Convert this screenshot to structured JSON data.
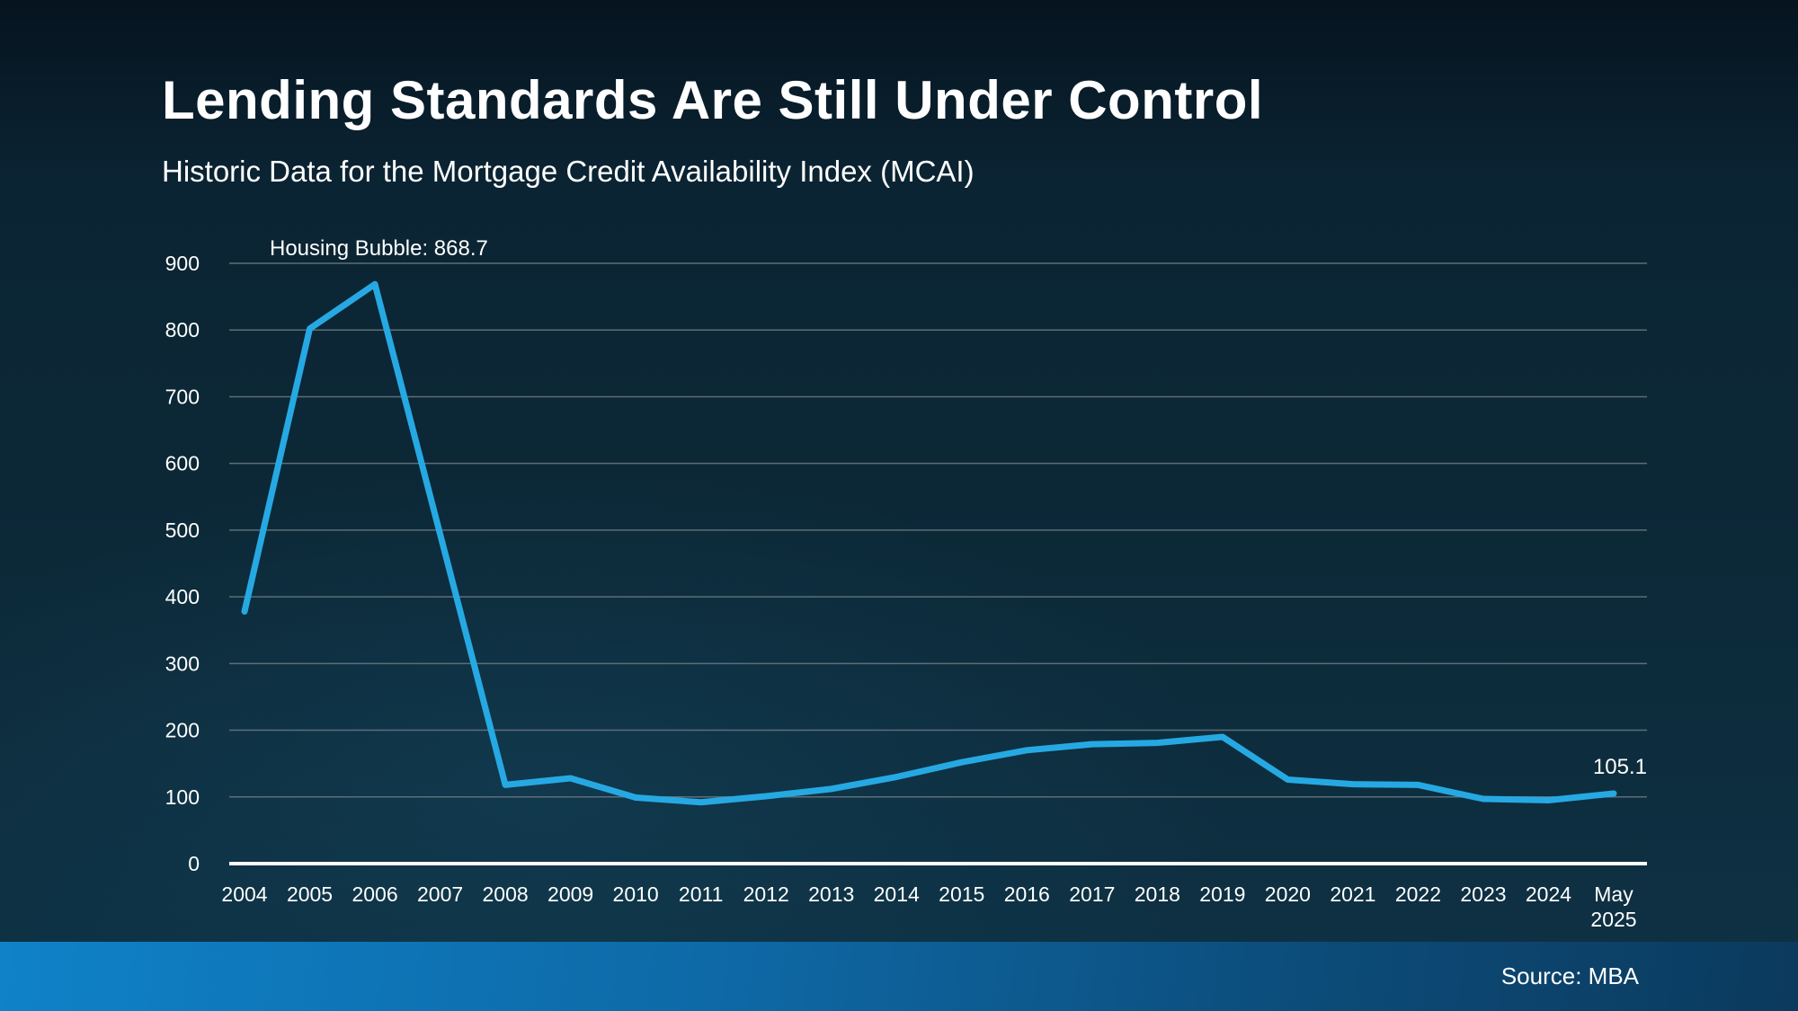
{
  "header": {
    "title": "Lending Standards Are Still Under Control",
    "subtitle": "Historic Data for the Mortgage Credit Availability Index (MCAI)"
  },
  "footer": {
    "source": "Source: MBA"
  },
  "colors": {
    "line": "#26A9E2",
    "grid": "#5D6E78",
    "axis": "#FFFFFF",
    "text": "#FFFFFF",
    "footer_gradient_left": "#0F82C8",
    "footer_gradient_mid": "#0C4A77",
    "footer_gradient_right": "#0B3A5D"
  },
  "chart_data": {
    "type": "line",
    "title": "Lending Standards Are Still Under Control",
    "subtitle": "Historic Data for the Mortgage Credit Availability Index (MCAI)",
    "categories": [
      "2004",
      "2005",
      "2006",
      "2007",
      "2008",
      "2009",
      "2010",
      "2011",
      "2012",
      "2013",
      "2014",
      "2015",
      "2016",
      "2017",
      "2018",
      "2019",
      "2020",
      "2021",
      "2022",
      "2023",
      "2024",
      "May 2025"
    ],
    "series": [
      {
        "name": "MCAI",
        "values": [
          378,
          802,
          868.7,
          494,
          118,
          128,
          99,
          92,
          101,
          112,
          130,
          152,
          170,
          179,
          181,
          190,
          126,
          119,
          118,
          97,
          95,
          105.1
        ]
      }
    ],
    "annotation": "Housing Bubble: 868.7",
    "end_label": "105.1",
    "ylabel": "",
    "xlabel": "",
    "ylim": [
      0,
      900
    ],
    "ytick_step": 100,
    "grid": true,
    "legend": "none",
    "source": "Source: MBA"
  }
}
